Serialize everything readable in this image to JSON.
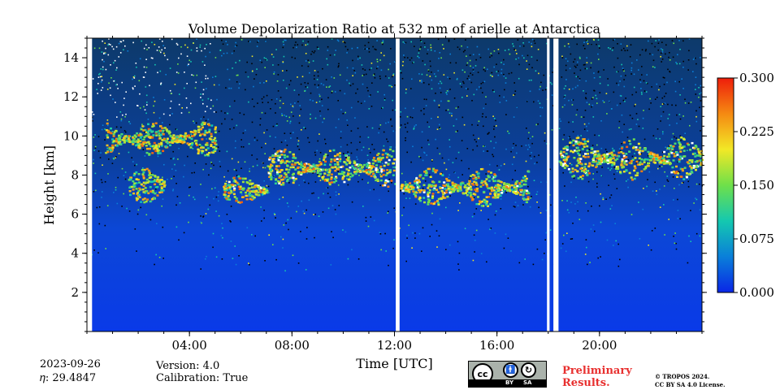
{
  "chart_data": {
    "type": "heatmap",
    "title": "Volume Depolarization Ratio at 532 nm of arielle at Antarctica",
    "xlabel": "Time [UTC]",
    "ylabel": "Height [km]",
    "x_range_hours": [
      0,
      24
    ],
    "ylim": [
      0,
      15
    ],
    "x_ticks": [
      {
        "h": 4,
        "label": "04:00"
      },
      {
        "h": 8,
        "label": "08:00"
      },
      {
        "h": 12,
        "label": "12:00"
      },
      {
        "h": 16,
        "label": "16:00"
      },
      {
        "h": 20,
        "label": "20:00"
      }
    ],
    "y_ticks": [
      {
        "v": 2,
        "label": "2"
      },
      {
        "v": 4,
        "label": "4"
      },
      {
        "v": 6,
        "label": "6"
      },
      {
        "v": 8,
        "label": "8"
      },
      {
        "v": 10,
        "label": "10"
      },
      {
        "v": 12,
        "label": "12"
      },
      {
        "v": 14,
        "label": "14"
      }
    ],
    "colorbar": {
      "min": 0.0,
      "max": 0.3,
      "ticks": [
        {
          "v": 0.0,
          "label": "0.000"
        },
        {
          "v": 0.075,
          "label": "0.075"
        },
        {
          "v": 0.15,
          "label": "0.150"
        },
        {
          "v": 0.225,
          "label": "0.225"
        },
        {
          "v": 0.3,
          "label": "0.300"
        }
      ],
      "colors": [
        "#0a26e6",
        "#0a7fd9",
        "#14c8b0",
        "#6ee04a",
        "#f2e826",
        "#f58a12",
        "#ee1e0b"
      ]
    },
    "data_gaps_hours": [
      [
        0.0,
        0.2
      ],
      [
        12.05,
        12.2
      ],
      [
        17.95,
        18.05
      ],
      [
        18.2,
        18.4
      ]
    ],
    "cloud_layers": [
      {
        "t_start": 0.7,
        "t_end": 5.0,
        "base_km": 9.0,
        "top_km": 10.8,
        "peak_ratio": 0.27
      },
      {
        "t_start": 1.6,
        "t_end": 3.0,
        "base_km": 6.6,
        "top_km": 8.4,
        "peak_ratio": 0.26
      },
      {
        "t_start": 5.3,
        "t_end": 7.0,
        "base_km": 6.5,
        "top_km": 8.0,
        "peak_ratio": 0.28
      },
      {
        "t_start": 7.0,
        "t_end": 12.0,
        "base_km": 7.4,
        "top_km": 9.4,
        "peak_ratio": 0.29
      },
      {
        "t_start": 12.2,
        "t_end": 17.2,
        "base_km": 6.4,
        "top_km": 8.4,
        "peak_ratio": 0.28
      },
      {
        "t_start": 18.4,
        "t_end": 24.0,
        "base_km": 7.8,
        "top_km": 10.0,
        "peak_ratio": 0.29
      }
    ],
    "colormap": "jet-like"
  },
  "footer": {
    "date": "2023-09-26",
    "eta": "𝜂: 29.4847",
    "version": "Version: 4.0",
    "calibration": "Calibration: True",
    "cc_by": "BY",
    "cc_sa": "SA",
    "cc_cc": "cc",
    "preliminary_line1": "Preliminary",
    "preliminary_line2": "Results.",
    "copyright_line1": "© TROPOS 2024.",
    "copyright_line2": "CC BY SA 4.0 License."
  }
}
